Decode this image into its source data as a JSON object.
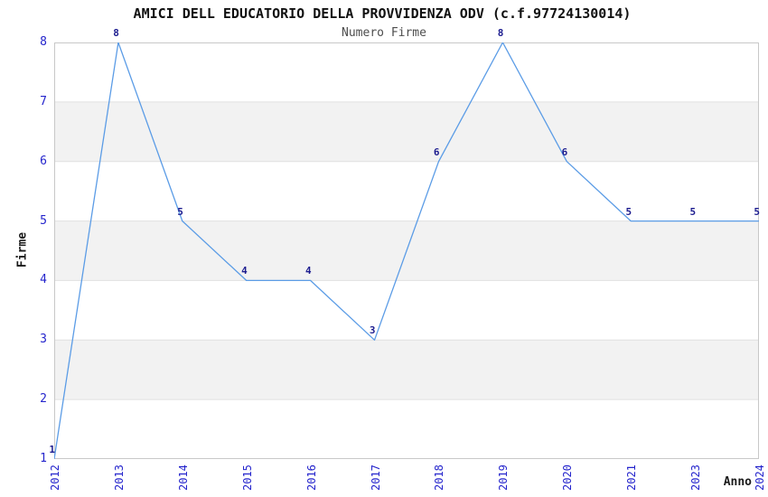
{
  "title": "AMICI DELL EDUCATORIO DELLA PROVVIDENZA ODV (c.f.97724130014)",
  "subtitle": "Numero Firme",
  "axes": {
    "x_title": "Anno",
    "y_title": "Firme"
  },
  "chart_data": {
    "type": "line",
    "title": "AMICI DELL EDUCATORIO DELLA PROVVIDENZA ODV (c.f.97724130014)",
    "subtitle": "Numero Firme",
    "xlabel": "Anno",
    "ylabel": "Firme",
    "categories": [
      "2012",
      "2013",
      "2014",
      "2015",
      "2016",
      "2017",
      "2018",
      "2019",
      "2020",
      "2021",
      "2023",
      "2024"
    ],
    "values": [
      1,
      8,
      5,
      4,
      4,
      3,
      6,
      8,
      6,
      5,
      5,
      5
    ],
    "ylim": [
      1,
      8
    ],
    "yticks": [
      1,
      2,
      3,
      4,
      5,
      6,
      7,
      8
    ],
    "grid": "horizontal",
    "background_bands": "alternating gray/white between integer gridlines",
    "legend": "none",
    "point_labels_shown": true
  },
  "colors": {
    "background": "#ffffff",
    "line": "#5b9ce6",
    "tick_label": "#2424cc",
    "point_label": "#1c1c8f",
    "band": "#f2f2f2",
    "grid": "#e0e0e0",
    "border": "#c8c8c8",
    "title": "#111111",
    "subtitle": "#4d4d4d",
    "axis_title": "#1a1a1a"
  }
}
